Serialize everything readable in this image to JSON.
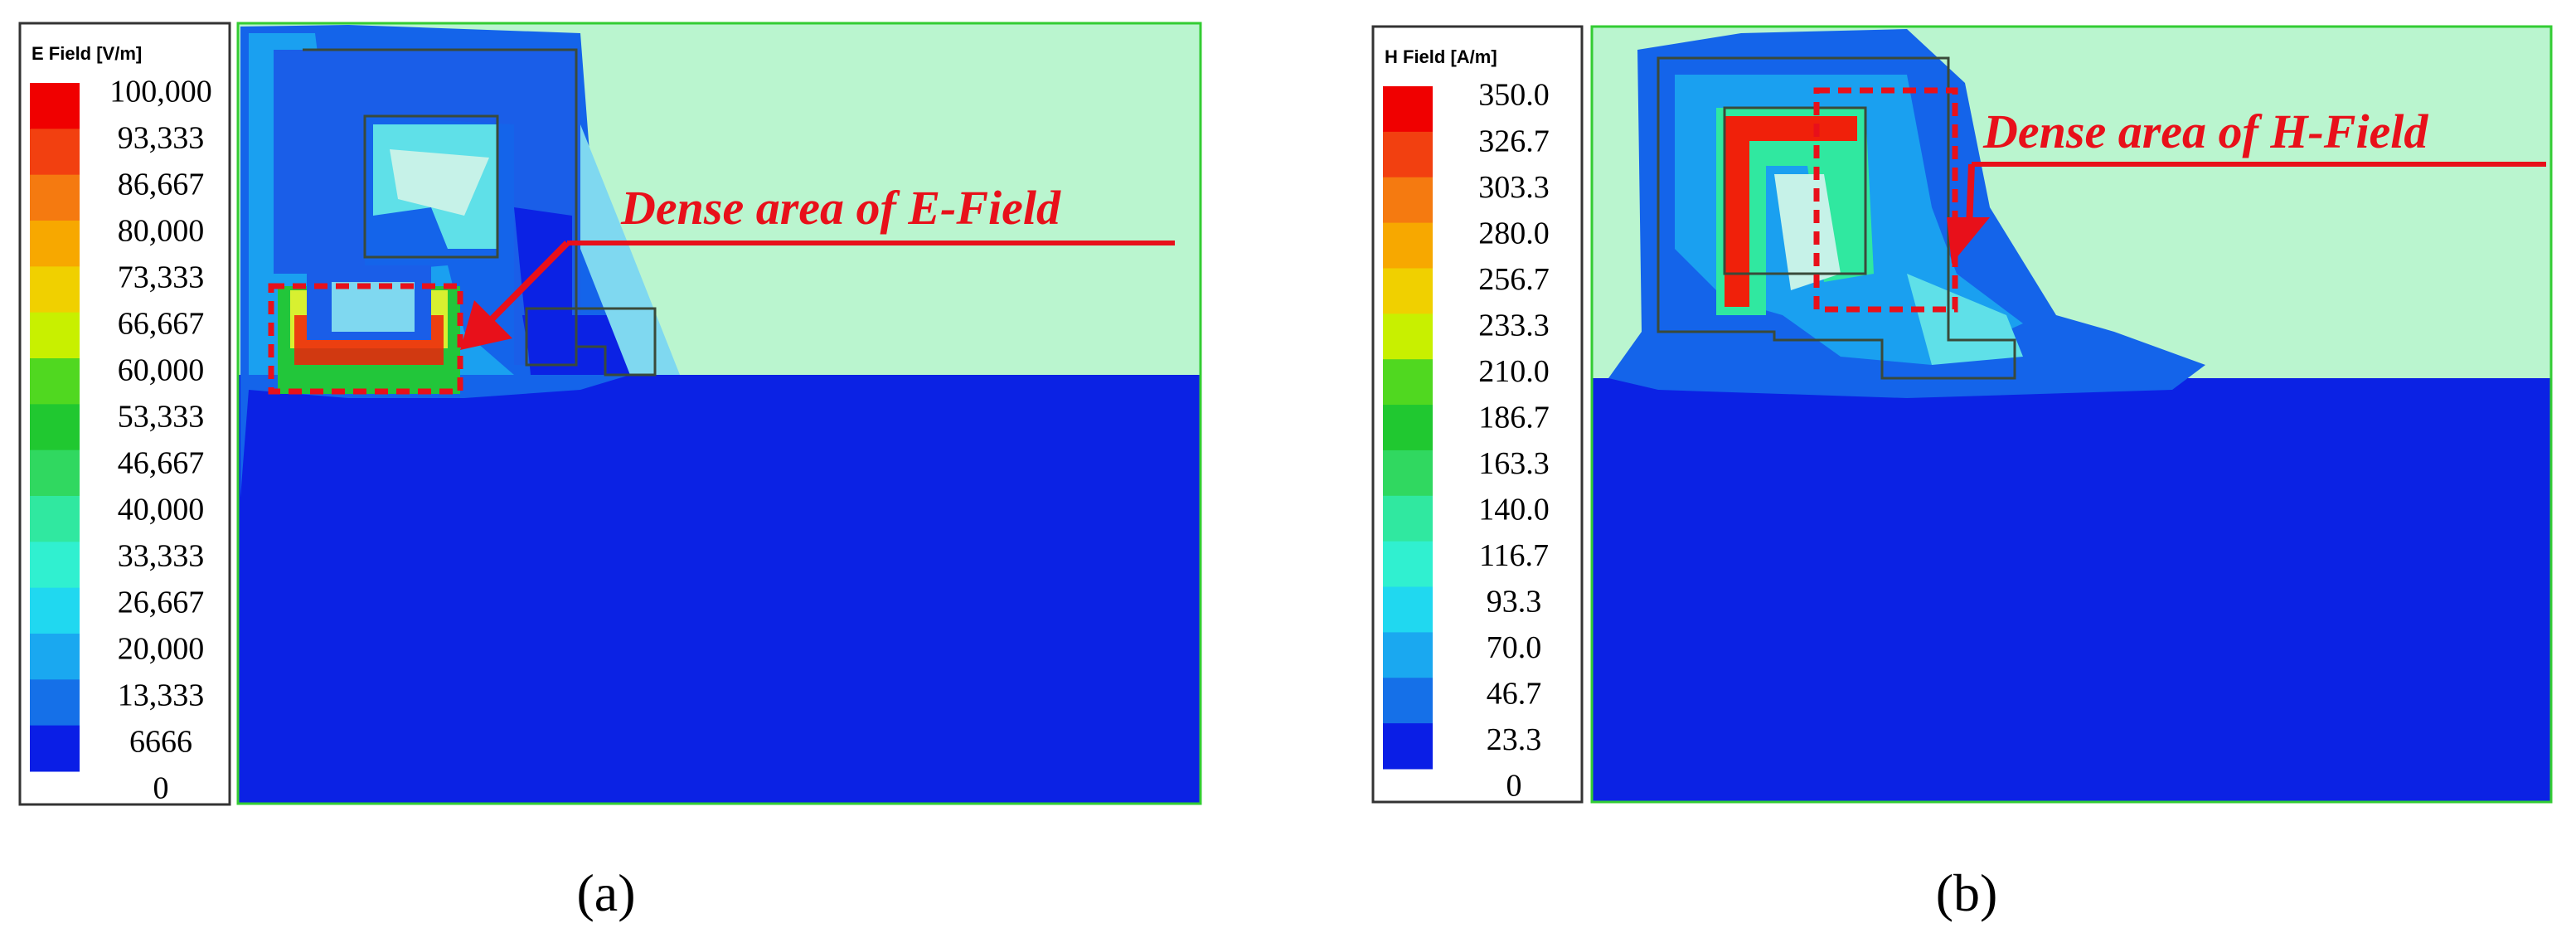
{
  "panels": [
    {
      "legend": {
        "title": "E Field [V/m]",
        "labels": [
          "100,000",
          "93,333",
          "86,667",
          "80,000",
          "73,333",
          "66,667",
          "60,000",
          "53,333",
          "46,667",
          "40,000",
          "33,333",
          "26,667",
          "20,000",
          "13,333",
          "6666",
          "0"
        ]
      },
      "annotation": "Dense area of E-Field",
      "caption": "(a)"
    },
    {
      "legend": {
        "title": "H Field [A/m]",
        "labels": [
          "350.0",
          "326.7",
          "303.3",
          "280.0",
          "256.7",
          "233.3",
          "210.0",
          "186.7",
          "163.3",
          "140.0",
          "116.7",
          "93.3",
          "70.0",
          "46.7",
          "23.3",
          "0"
        ]
      },
      "annotation": "Dense area of H-Field",
      "caption": "(b)"
    }
  ]
}
